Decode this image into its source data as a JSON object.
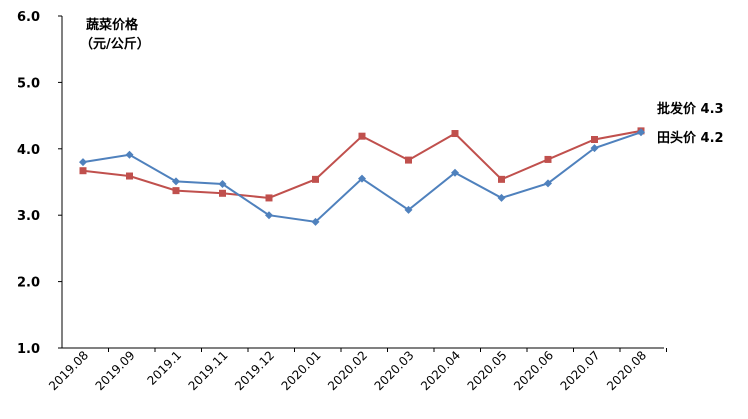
{
  "chart_data": {
    "type": "line",
    "title": "",
    "ylabel_line1": "蔬菜价格",
    "ylabel_line2": "（元/公斤）",
    "xlabel": "",
    "ylim": [
      1.0,
      6.0
    ],
    "yticks": [
      "1.0",
      "2.0",
      "3.0",
      "4.0",
      "5.0",
      "6.0"
    ],
    "grid": false,
    "categories": [
      "2019.08",
      "2019.09",
      "2019.1",
      "2019.11",
      "2019.12",
      "2020.01",
      "2020.02",
      "2020.03",
      "2020.04",
      "2020.05",
      "2020.06",
      "2020.07",
      "2020.08"
    ],
    "series": [
      {
        "name": "批发价",
        "end_label": "批发价 4.3",
        "color": "#C0504D",
        "marker": "square",
        "values": [
          3.67,
          3.59,
          3.37,
          3.33,
          3.26,
          3.54,
          4.19,
          3.83,
          4.23,
          3.54,
          3.84,
          4.14,
          4.27
        ]
      },
      {
        "name": "田头价",
        "end_label": "田头价 4.2",
        "color": "#4F81BD",
        "marker": "diamond",
        "values": [
          3.8,
          3.91,
          3.51,
          3.47,
          3.0,
          2.9,
          3.55,
          3.08,
          3.64,
          3.26,
          3.48,
          4.01,
          4.25
        ]
      }
    ]
  }
}
